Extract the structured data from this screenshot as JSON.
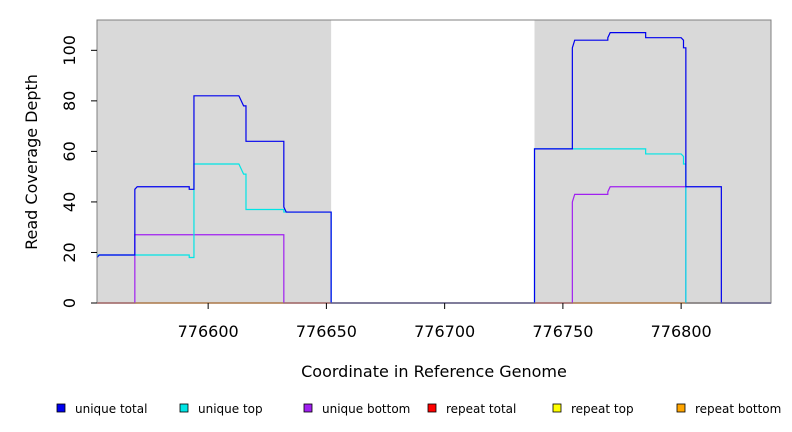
{
  "chart_data": {
    "type": "line",
    "xlabel": "Coordinate in Reference Genome",
    "ylabel": "Read Coverage Depth",
    "xlim": [
      776553,
      776838
    ],
    "ylim": [
      0,
      112
    ],
    "x_ticks": [
      776600,
      776650,
      776700,
      776750,
      776800
    ],
    "y_ticks": [
      0,
      20,
      40,
      60,
      80,
      100
    ],
    "grid": false,
    "background_regions": [
      {
        "x0": 776553,
        "x1": 776652,
        "color": "#d9d9d9"
      },
      {
        "x0": 776738,
        "x1": 776838,
        "color": "#d9d9d9"
      }
    ],
    "series": [
      {
        "name": "unique total",
        "color": "#0000ee",
        "points": [
          [
            776553,
            18
          ],
          [
            776554,
            19
          ],
          [
            776569,
            19
          ],
          [
            776569,
            45
          ],
          [
            776570,
            46
          ],
          [
            776592,
            46
          ],
          [
            776592,
            45
          ],
          [
            776594,
            45
          ],
          [
            776594,
            82
          ],
          [
            776613,
            82
          ],
          [
            776614,
            80
          ],
          [
            776615,
            78
          ],
          [
            776616,
            78
          ],
          [
            776616,
            64
          ],
          [
            776632,
            64
          ],
          [
            776632,
            38
          ],
          [
            776633,
            36
          ],
          [
            776652,
            36
          ],
          [
            776652,
            0
          ],
          [
            776738,
            0
          ],
          [
            776738,
            61
          ],
          [
            776754,
            61
          ],
          [
            776754,
            101
          ],
          [
            776755,
            104
          ],
          [
            776769,
            104
          ],
          [
            776769,
            105
          ],
          [
            776770,
            107
          ],
          [
            776785,
            107
          ],
          [
            776785,
            105
          ],
          [
            776800,
            105
          ],
          [
            776801,
            104
          ],
          [
            776801,
            101
          ],
          [
            776802,
            101
          ],
          [
            776802,
            46
          ],
          [
            776817,
            46
          ],
          [
            776817,
            0
          ],
          [
            776838,
            0
          ]
        ]
      },
      {
        "name": "unique top",
        "color": "#00e5e5",
        "points": [
          [
            776553,
            19
          ],
          [
            776592,
            19
          ],
          [
            776592,
            18
          ],
          [
            776594,
            18
          ],
          [
            776594,
            55
          ],
          [
            776613,
            55
          ],
          [
            776614,
            53
          ],
          [
            776615,
            51
          ],
          [
            776616,
            51
          ],
          [
            776616,
            37
          ],
          [
            776632,
            37
          ],
          [
            776632,
            36
          ],
          [
            776652,
            36
          ],
          [
            776652,
            0
          ],
          [
            776738,
            0
          ],
          [
            776738,
            61
          ],
          [
            776785,
            61
          ],
          [
            776785,
            59
          ],
          [
            776800,
            59
          ],
          [
            776801,
            58
          ],
          [
            776801,
            55
          ],
          [
            776802,
            55
          ],
          [
            776802,
            0
          ],
          [
            776838,
            0
          ]
        ]
      },
      {
        "name": "unique bottom",
        "color": "#a020f0",
        "points": [
          [
            776553,
            0
          ],
          [
            776569,
            0
          ],
          [
            776569,
            27
          ],
          [
            776632,
            27
          ],
          [
            776632,
            0
          ],
          [
            776754,
            0
          ],
          [
            776754,
            40
          ],
          [
            776755,
            43
          ],
          [
            776769,
            43
          ],
          [
            776769,
            44
          ],
          [
            776770,
            46
          ],
          [
            776802,
            46
          ],
          [
            776802,
            0
          ],
          [
            776838,
            0
          ]
        ]
      },
      {
        "name": "repeat total",
        "color": "#ff0000",
        "points": [
          [
            776553,
            0
          ],
          [
            776838,
            0
          ]
        ]
      },
      {
        "name": "repeat top",
        "color": "#ffff00",
        "points": [
          [
            776553,
            0
          ],
          [
            776838,
            0
          ]
        ]
      },
      {
        "name": "repeat bottom",
        "color": "#ffa500",
        "points": [
          [
            776553,
            0
          ],
          [
            776838,
            0
          ]
        ]
      }
    ]
  }
}
